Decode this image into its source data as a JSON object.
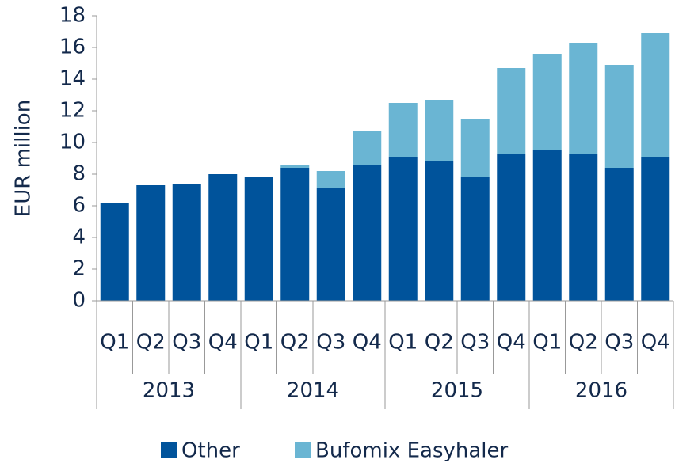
{
  "chart_data": {
    "type": "stacked_bar",
    "y_label": "EUR million",
    "categories": [
      "Q1",
      "Q2",
      "Q3",
      "Q4",
      "Q1",
      "Q2",
      "Q3",
      "Q4",
      "Q1",
      "Q2",
      "Q3",
      "Q4",
      "Q1",
      "Q2",
      "Q3",
      "Q4"
    ],
    "groups": [
      "2013",
      "2014",
      "2015",
      "2016"
    ],
    "series": [
      {
        "name": "Other",
        "color": "#00539b",
        "values": [
          6.2,
          7.3,
          7.4,
          8.0,
          7.8,
          8.4,
          7.1,
          8.6,
          9.1,
          8.8,
          7.8,
          9.3,
          9.5,
          9.3,
          8.4,
          9.1
        ]
      },
      {
        "name": "Bufomix Easyhaler",
        "color": "#6ab5d3",
        "values": [
          0,
          0,
          0,
          0,
          0,
          0.2,
          1.1,
          2.1,
          3.4,
          3.9,
          3.7,
          5.4,
          6.1,
          7.0,
          6.5,
          7.8
        ]
      }
    ],
    "ylim": [
      0,
      18
    ],
    "yticks": [
      0,
      2,
      4,
      6,
      8,
      10,
      12,
      14,
      16,
      18
    ],
    "grid": false,
    "legend": "bottom"
  }
}
